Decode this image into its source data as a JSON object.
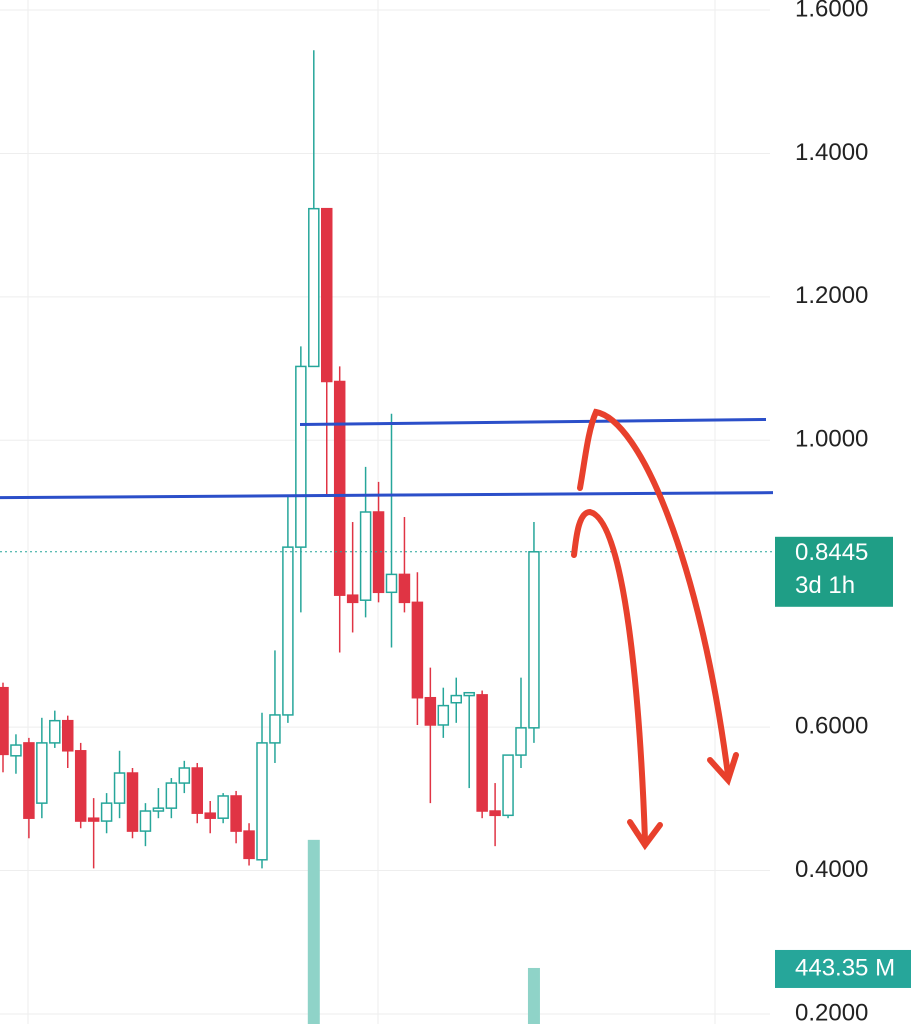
{
  "chart_data": {
    "type": "candlestick",
    "candles": {
      "open": [
        0.655,
        0.56,
        0.578,
        0.494,
        0.578,
        0.609,
        0.567,
        0.473,
        0.469,
        0.494,
        0.536,
        0.455,
        0.483,
        0.487,
        0.522,
        0.543,
        0.48,
        0.473,
        0.504,
        0.455,
        0.415,
        0.578,
        0.617,
        0.851,
        1.103,
        1.323,
        1.082,
        0.784,
        0.777,
        0.9,
        0.788,
        0.813,
        0.774,
        0.641,
        0.603,
        0.634,
        0.644,
        0.645,
        0.483,
        0.477,
        0.561,
        0.599
      ],
      "high": [
        0.662,
        0.59,
        0.585,
        0.613,
        0.623,
        0.616,
        0.578,
        0.501,
        0.508,
        0.567,
        0.543,
        0.494,
        0.515,
        0.529,
        0.553,
        0.55,
        0.497,
        0.508,
        0.511,
        0.466,
        0.62,
        0.707,
        0.921,
        1.131,
        1.544,
        1.323,
        1.103,
        0.886,
        0.963,
        0.942,
        1.037,
        0.893,
        0.816,
        0.683,
        0.655,
        0.669,
        0.648,
        0.651,
        0.522,
        0.561,
        0.669,
        0.886
      ],
      "low": [
        0.537,
        0.535,
        0.445,
        0.473,
        0.571,
        0.543,
        0.459,
        0.403,
        0.452,
        0.473,
        0.445,
        0.434,
        0.473,
        0.473,
        0.508,
        0.466,
        0.452,
        0.466,
        0.438,
        0.407,
        0.403,
        0.55,
        0.606,
        0.76,
        1.103,
        0.921,
        0.704,
        0.732,
        0.753,
        0.774,
        0.711,
        0.76,
        0.603,
        0.494,
        0.585,
        0.606,
        0.515,
        0.473,
        0.434,
        0.473,
        0.543,
        0.578
      ],
      "close": [
        0.562,
        0.575,
        0.473,
        0.578,
        0.609,
        0.567,
        0.469,
        0.469,
        0.494,
        0.536,
        0.455,
        0.483,
        0.487,
        0.522,
        0.543,
        0.48,
        0.473,
        0.504,
        0.455,
        0.417,
        0.578,
        0.617,
        0.851,
        1.103,
        1.323,
        1.082,
        0.784,
        0.774,
        0.9,
        0.788,
        0.813,
        0.774,
        0.641,
        0.603,
        0.63,
        0.644,
        0.648,
        0.483,
        0.477,
        0.561,
        0.599,
        0.8445
      ]
    },
    "up_color": "#26a69a",
    "down_color": "#e03444",
    "ylim": [
      0.186,
      1.614
    ],
    "yticks": [
      {
        "value": 1.6,
        "label": "1.6000"
      },
      {
        "value": 1.4,
        "label": "1.4000"
      },
      {
        "value": 1.2,
        "label": "1.2000"
      },
      {
        "value": 1.0,
        "label": "1.0000"
      },
      {
        "value": 0.6,
        "label": "0.6000"
      },
      {
        "value": 0.4,
        "label": "0.4000"
      },
      {
        "value": 0.2,
        "label": "0.2000"
      }
    ],
    "grid": true,
    "last_price": 0.8445,
    "countdown": "3d 1h",
    "volume": {
      "values": [
        null,
        null,
        null,
        null,
        null,
        null,
        null,
        null,
        null,
        null,
        null,
        null,
        null,
        null,
        null,
        null,
        null,
        null,
        null,
        null,
        null,
        null,
        null,
        null,
        1457,
        null,
        null,
        null,
        null,
        null,
        null,
        null,
        null,
        null,
        null,
        null,
        null,
        null,
        null,
        null,
        null,
        443.35
      ],
      "ylim": [
        0,
        3600
      ],
      "color": "#8fd3c8",
      "last_label": "443.35 M"
    },
    "lines": [
      {
        "values": [
          1.022,
          1.029
        ],
        "color": "#2b4fc9"
      },
      {
        "values": [
          0.92,
          0.927
        ],
        "color": "#2b4fc9"
      }
    ]
  }
}
